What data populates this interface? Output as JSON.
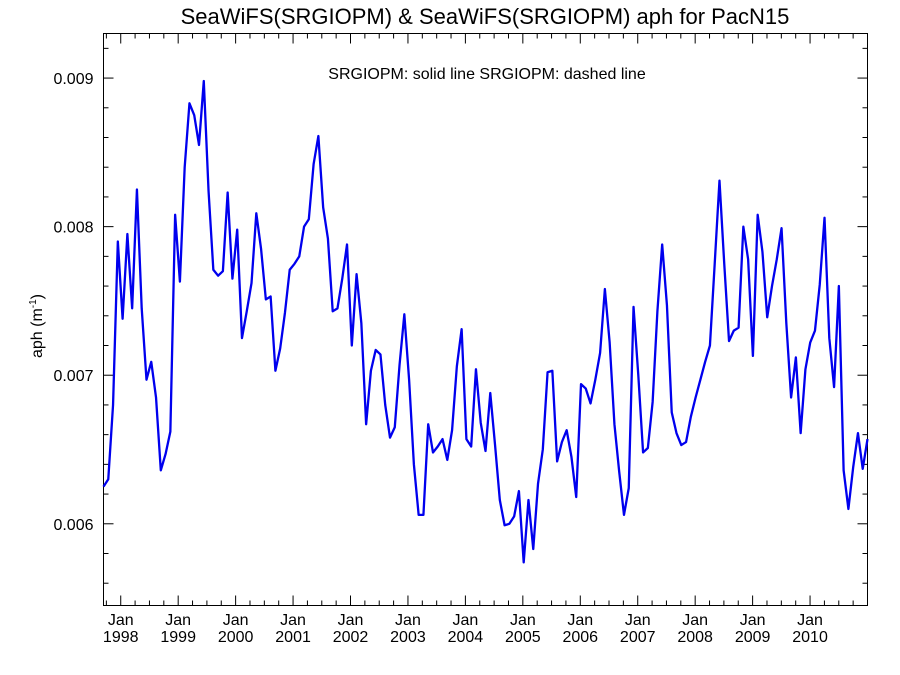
{
  "chart_data": {
    "type": "line",
    "title": "SeaWiFS(SRGIOPM) & SeaWiFS(SRGIOPM)  aph for PacN15",
    "annotation": "SRGIOPM: solid line   SRGIOPM: dashed line",
    "ylabel_main": "aph (m",
    "ylabel_sup": "-1",
    "ylabel_close": ")",
    "xlabel": "",
    "x_ticks": [
      {
        "x": 1998.0,
        "month": "Jan",
        "year": "1998"
      },
      {
        "x": 1999.0,
        "month": "Jan",
        "year": "1999"
      },
      {
        "x": 2000.0,
        "month": "Jan",
        "year": "2000"
      },
      {
        "x": 2001.0,
        "month": "Jan",
        "year": "2001"
      },
      {
        "x": 2002.0,
        "month": "Jan",
        "year": "2002"
      },
      {
        "x": 2003.0,
        "month": "Jan",
        "year": "2003"
      },
      {
        "x": 2004.0,
        "month": "Jan",
        "year": "2004"
      },
      {
        "x": 2005.0,
        "month": "Jan",
        "year": "2005"
      },
      {
        "x": 2006.0,
        "month": "Jan",
        "year": "2006"
      },
      {
        "x": 2007.0,
        "month": "Jan",
        "year": "2007"
      },
      {
        "x": 2008.0,
        "month": "Jan",
        "year": "2008"
      },
      {
        "x": 2009.0,
        "month": "Jan",
        "year": "2009"
      },
      {
        "x": 2010.0,
        "month": "Jan",
        "year": "2010"
      }
    ],
    "y_ticks": [
      "0.006",
      "0.007",
      "0.008",
      "0.009"
    ],
    "y_tick_values": [
      0.006,
      0.007,
      0.008,
      0.009
    ],
    "xlim": [
      1997.7,
      2011.0
    ],
    "ylim": [
      0.00545,
      0.0093
    ],
    "grid": false,
    "series": [
      {
        "color": "#0000ee",
        "style": "solid",
        "values": [
          0.00625,
          0.0063,
          0.0068,
          0.0079,
          0.00738,
          0.00795,
          0.00745,
          0.00825,
          0.00745,
          0.00697,
          0.00709,
          0.00685,
          0.00636,
          0.00647,
          0.00662,
          0.00808,
          0.00763,
          0.0084,
          0.00883,
          0.00875,
          0.00855,
          0.00898,
          0.00824,
          0.00771,
          0.00767,
          0.0077,
          0.00823,
          0.00765,
          0.00798,
          0.00725,
          0.00743,
          0.00762,
          0.00809,
          0.00785,
          0.00751,
          0.00753,
          0.00703,
          0.00718,
          0.00742,
          0.00771,
          0.00775,
          0.0078,
          0.008,
          0.00805,
          0.00842,
          0.00861,
          0.00813,
          0.00792,
          0.00743,
          0.00745,
          0.00765,
          0.00788,
          0.0072,
          0.00768,
          0.00735,
          0.00667,
          0.00703,
          0.00717,
          0.00714,
          0.0068,
          0.00658,
          0.00665,
          0.00707,
          0.00741,
          0.00697,
          0.0064,
          0.00606,
          0.00606,
          0.00667,
          0.00648,
          0.00652,
          0.00657,
          0.00643,
          0.00663,
          0.00706,
          0.00731,
          0.00657,
          0.00652,
          0.00704,
          0.00668,
          0.00649,
          0.00688,
          0.00653,
          0.00616,
          0.00599,
          0.006,
          0.00605,
          0.00622,
          0.00574,
          0.00616,
          0.00583,
          0.00627,
          0.0065,
          0.00702,
          0.00703,
          0.00642,
          0.00655,
          0.00663,
          0.00645,
          0.00618,
          0.00694,
          0.00691,
          0.00681,
          0.00697,
          0.00715,
          0.00758,
          0.00722,
          0.00667,
          0.00635,
          0.00606,
          0.00624,
          0.00746,
          0.007,
          0.00648,
          0.00651,
          0.00682,
          0.00743,
          0.00788,
          0.00747,
          0.00675,
          0.00661,
          0.00653,
          0.00655,
          0.00672,
          0.00685,
          0.00697,
          0.00709,
          0.0072,
          0.00775,
          0.00831,
          0.00775,
          0.00723,
          0.0073,
          0.00732,
          0.008,
          0.00778,
          0.00713,
          0.00808,
          0.00783,
          0.00739,
          0.0076,
          0.00778,
          0.00799,
          0.00735,
          0.00685,
          0.00712,
          0.00661,
          0.00704,
          0.00722,
          0.0073,
          0.00761,
          0.00806,
          0.00725,
          0.00692,
          0.0076,
          0.00636,
          0.0061,
          0.00638,
          0.00661,
          0.00637,
          0.00657
        ]
      }
    ]
  }
}
